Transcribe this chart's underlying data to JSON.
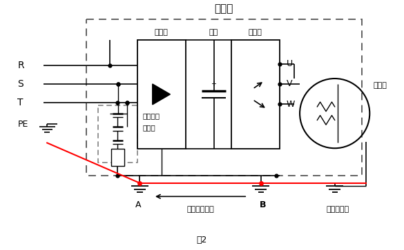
{
  "title": "变频器",
  "caption": "图2",
  "label_R": "R",
  "label_S": "S",
  "label_T": "T",
  "label_PE": "PE",
  "label_U": "U",
  "label_V": "V",
  "label_W": "W",
  "label_motor": "电动机",
  "label_filter1": "感应浪涌",
  "label_filter2": "滤波器",
  "label_rectifier": "整流桥",
  "label_cap": "电容",
  "label_inverter": "逆变桥",
  "label_A": "A",
  "label_B": "B",
  "label_vfd_gnd": "变频器接地端",
  "label_motor_gnd": "电机接地端",
  "bg_color": "#ffffff",
  "line_color": "#000000",
  "red_color": "#ff0000"
}
